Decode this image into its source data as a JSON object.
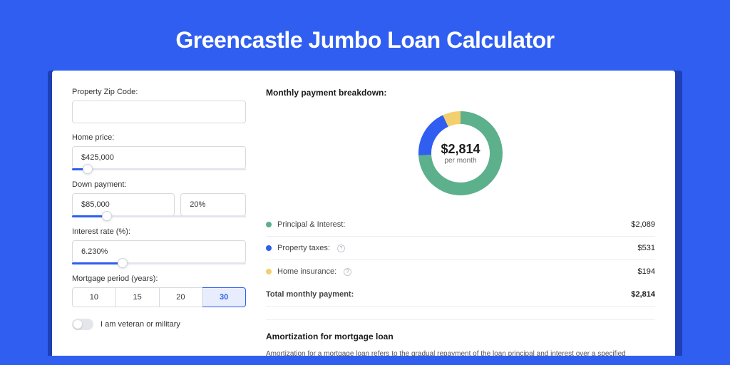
{
  "header": {
    "title": "Greencastle Jumbo Loan Calculator"
  },
  "form": {
    "zip": {
      "label": "Property Zip Code:",
      "value": ""
    },
    "home_price": {
      "label": "Home price:",
      "value": "$425,000",
      "slider_pct": 9
    },
    "down_payment": {
      "label": "Down payment:",
      "value": "$85,000",
      "pct": "20%",
      "slider_pct": 20
    },
    "interest_rate": {
      "label": "Interest rate (%):",
      "value": "6.230%",
      "slider_pct": 29
    },
    "mortgage_period": {
      "label": "Mortgage period (years):",
      "options": [
        "10",
        "15",
        "20",
        "30"
      ],
      "selected": "30"
    },
    "veteran": {
      "label": "I am veteran or military",
      "checked": false
    }
  },
  "breakdown": {
    "title": "Monthly payment breakdown:",
    "total_amount": "$2,814",
    "total_sub": "per month",
    "donut": {
      "segments": [
        {
          "color": "#5cb08b",
          "pct": 74.2
        },
        {
          "color": "#2f5ef0",
          "pct": 18.9
        },
        {
          "color": "#f3cf6e",
          "pct": 6.9
        }
      ],
      "stroke_width": 18,
      "bg": "#ffffff"
    },
    "items": [
      {
        "dot": "#5cb08b",
        "label": "Principal & Interest:",
        "info": false,
        "value": "$2,089"
      },
      {
        "dot": "#2f5ef0",
        "label": "Property taxes:",
        "info": true,
        "value": "$531"
      },
      {
        "dot": "#f3cf6e",
        "label": "Home insurance:",
        "info": true,
        "value": "$194"
      }
    ],
    "total_row": {
      "label": "Total monthly payment:",
      "value": "$2,814"
    }
  },
  "amortization": {
    "title": "Amortization for mortgage loan",
    "text": "Amortization for a mortgage loan refers to the gradual repayment of the loan principal and interest over a specified"
  },
  "colors": {
    "page_bg": "#2f5ef0",
    "shadow_bg": "#1e3fb5",
    "card_bg": "#ffffff",
    "border": "#d6d9de"
  }
}
